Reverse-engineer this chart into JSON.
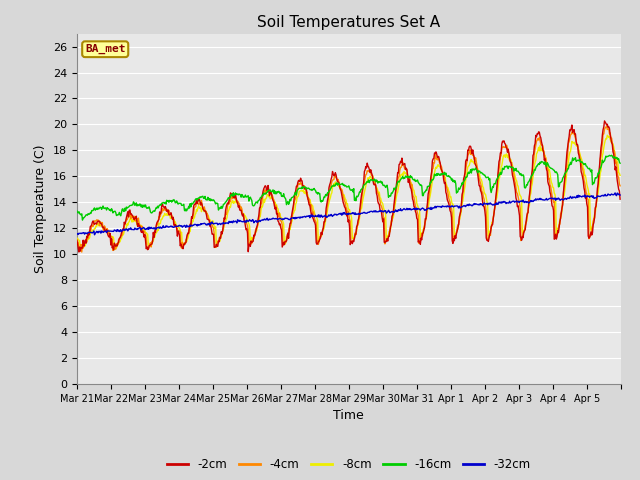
{
  "title": "Soil Temperatures Set A",
  "xlabel": "Time",
  "ylabel": "Soil Temperature (C)",
  "ylim": [
    0,
    27
  ],
  "yticks": [
    0,
    2,
    4,
    6,
    8,
    10,
    12,
    14,
    16,
    18,
    20,
    22,
    24,
    26
  ],
  "annotation": "BA_met",
  "fig_bg": "#d8d8d8",
  "plot_bg": "#e8e8e8",
  "grid_color": "#ffffff",
  "colors": {
    "-2cm": "#cc0000",
    "-4cm": "#ff8800",
    "-8cm": "#eeee00",
    "-16cm": "#00cc00",
    "-32cm": "#0000cc"
  },
  "legend_labels": [
    "-2cm",
    "-4cm",
    "-8cm",
    "-16cm",
    "-32cm"
  ],
  "x_tick_labels": [
    "Mar 21",
    "Mar 22",
    "Mar 23",
    "Mar 24",
    "Mar 25",
    "Mar 26",
    "Mar 27",
    "Mar 28",
    "Mar 29",
    "Mar 30",
    "Mar 31",
    "Apr 1",
    "Apr 2",
    "Apr 3",
    "Apr 4",
    "Apr 5"
  ],
  "n_days": 16,
  "points_per_day": 48,
  "annotation_facecolor": "#ffff99",
  "annotation_edgecolor": "#aa8800",
  "annotation_textcolor": "#880000"
}
